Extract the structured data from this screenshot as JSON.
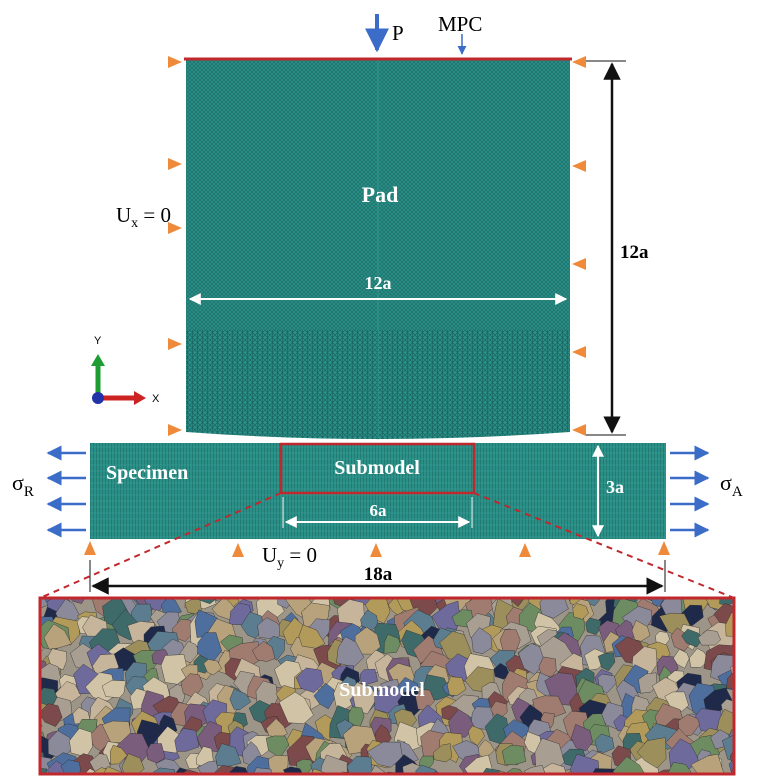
{
  "labels": {
    "load": "P",
    "mpc": "MPC",
    "pad": "Pad",
    "ux_base": "U",
    "ux_sub": "x",
    "ux_rest": " = 0",
    "uy_base": "U",
    "uy_sub": "y",
    "uy_rest": " = 0",
    "pad_height": "12a",
    "pad_width": "12a",
    "specimen": "Specimen",
    "submodel": "Submodel",
    "submodel_width": "6a",
    "specimen_height": "3a",
    "specimen_length": "18a",
    "sigma_r_base": "σ",
    "sigma_r_sub": "R",
    "sigma_a_base": "σ",
    "sigma_a_sub": "A",
    "axis_x": "X",
    "axis_y": "Y",
    "zoom_label": "Submodel"
  },
  "colors": {
    "mesh": "#2a8f86",
    "mesh_dark": "#1c6b66",
    "arrow_blue": "#3b6cc8",
    "triangle_orange": "#ee8a3a",
    "red": "#c0282d",
    "axis_green": "#1f9d33",
    "axis_red": "#cc2222",
    "axis_blue": "#2233aa"
  },
  "grain_palette": [
    "#6f6a9c",
    "#a89f92",
    "#c6b59a",
    "#4e6f9e",
    "#7a5c7c",
    "#9c8f5c",
    "#3f6a6a",
    "#b7a27c",
    "#8a8a9a",
    "#d1c4a6",
    "#5c7d8f",
    "#a07c70",
    "#6e8c62",
    "#b29a5a",
    "#1f2a4a",
    "#7c4a4a"
  ]
}
